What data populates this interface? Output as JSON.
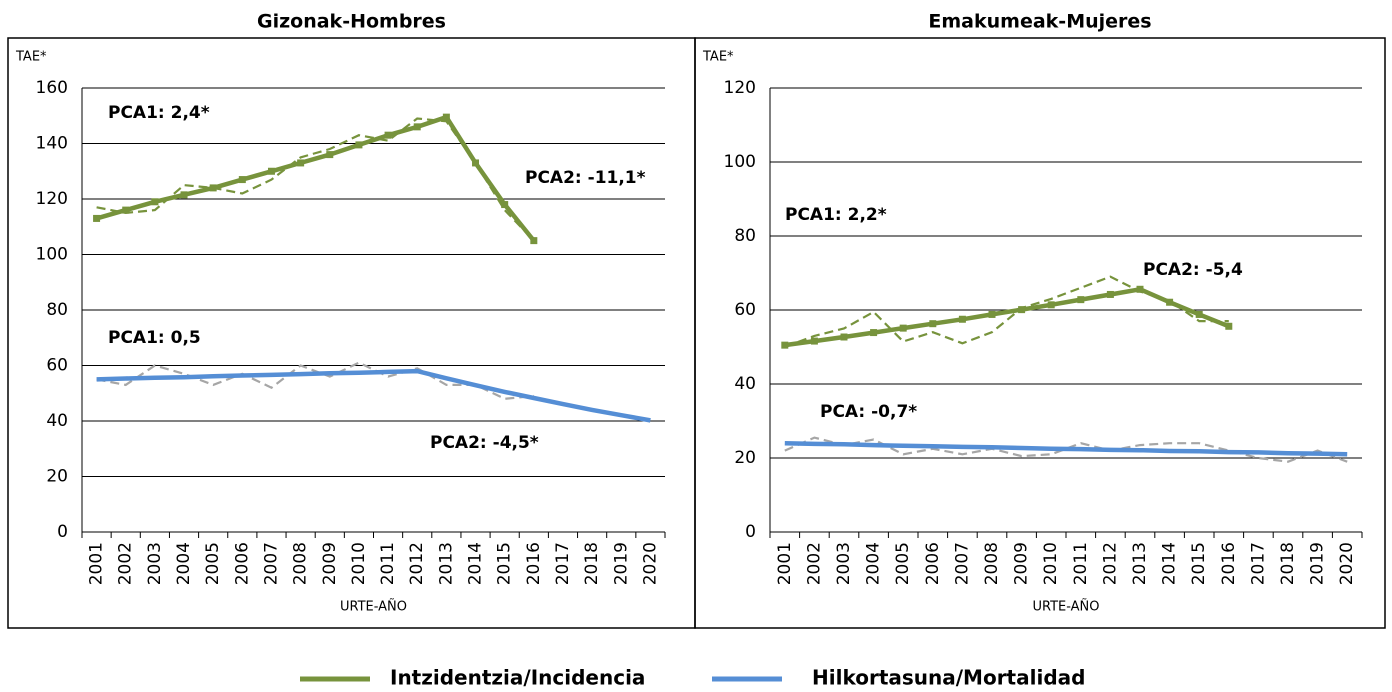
{
  "chart_data": [
    {
      "type": "line",
      "title": "Gizonak-Hombres",
      "y_label": "TAE*",
      "x_label": "URTE-AÑO",
      "categories": [
        "2001",
        "2002",
        "2003",
        "2004",
        "2005",
        "2006",
        "2007",
        "2008",
        "2009",
        "2010",
        "2011",
        "2012",
        "2013",
        "2014",
        "2015",
        "2016",
        "2017",
        "2018",
        "2019",
        "2020"
      ],
      "ylim": [
        0,
        160
      ],
      "yticks": [
        0,
        20,
        40,
        60,
        80,
        100,
        120,
        140,
        160
      ],
      "grid": true,
      "series": [
        {
          "name": "Intzidentzia/Incidencia",
          "color": "#77933c",
          "markers": true,
          "values": [
            113,
            116,
            119,
            121.5,
            124,
            127,
            130,
            133,
            136,
            139.5,
            143,
            146,
            149.5,
            133,
            118,
            105,
            null,
            null,
            null,
            null
          ],
          "observed_color": "#77933c",
          "observed": [
            117,
            115,
            116,
            125,
            124,
            122,
            127,
            135,
            138,
            143,
            141,
            149,
            148,
            133,
            116,
            105,
            null,
            null,
            null,
            null
          ]
        },
        {
          "name": "Hilkortasuna/Mortalidad",
          "color": "#558ed5",
          "markers": false,
          "values": [
            55,
            55.3,
            55.6,
            55.8,
            56.1,
            56.4,
            56.6,
            56.9,
            57.2,
            57.4,
            57.7,
            58,
            55.4,
            52.9,
            50.5,
            48.3,
            46.1,
            44,
            42.1,
            40.2
          ],
          "observed_color": "#a6a6a6",
          "observed": [
            55,
            53,
            60,
            57,
            53,
            57,
            52,
            60,
            56,
            61,
            56,
            59,
            53,
            53,
            48,
            49,
            null,
            null,
            null,
            null
          ]
        }
      ],
      "annotations": [
        {
          "text": "PCA1: 2,4*",
          "color": "#77933c"
        },
        {
          "text": "PCA2: -11,1*",
          "color": "#77933c"
        },
        {
          "text": "PCA1: 0,5",
          "color": "#558ed5"
        },
        {
          "text": "PCA2: -4,5*",
          "color": "#558ed5"
        }
      ]
    },
    {
      "type": "line",
      "title": "Emakumeak-Mujeres",
      "y_label": "TAE*",
      "x_label": "URTE-AÑO",
      "categories": [
        "2001",
        "2002",
        "2003",
        "2004",
        "2005",
        "2006",
        "2007",
        "2008",
        "2009",
        "2010",
        "2011",
        "2012",
        "2013",
        "2014",
        "2015",
        "2016",
        "2017",
        "2018",
        "2019",
        "2020"
      ],
      "ylim": [
        0,
        120
      ],
      "yticks": [
        0,
        20,
        40,
        60,
        80,
        100,
        120
      ],
      "grid": true,
      "series": [
        {
          "name": "Intzidentzia/Incidencia",
          "color": "#77933c",
          "markers": true,
          "values": [
            50.5,
            51.6,
            52.7,
            53.9,
            55.1,
            56.3,
            57.5,
            58.8,
            60.1,
            61.4,
            62.8,
            64.2,
            65.6,
            62.1,
            58.8,
            55.6,
            null,
            null,
            null,
            null
          ],
          "observed_color": "#77933c",
          "observed": [
            50,
            53,
            55,
            59.5,
            51.5,
            54,
            51,
            54,
            60.5,
            63,
            66,
            69,
            65,
            62.5,
            57,
            57,
            null,
            null,
            null,
            null
          ]
        },
        {
          "name": "Hilkortasuna/Mortalidad",
          "color": "#558ed5",
          "markers": false,
          "values": [
            24,
            23.8,
            23.7,
            23.5,
            23.3,
            23.2,
            23,
            22.9,
            22.7,
            22.5,
            22.4,
            22.2,
            22.1,
            21.9,
            21.8,
            21.6,
            21.5,
            21.3,
            21.2,
            21
          ],
          "observed_color": "#a6a6a6",
          "observed": [
            22,
            25.5,
            23.5,
            25,
            21,
            22.5,
            21,
            22.5,
            20.5,
            21,
            24,
            22,
            23.5,
            24,
            24,
            22,
            20,
            19,
            22,
            19
          ]
        }
      ],
      "annotations": [
        {
          "text": "PCA1: 2,2*",
          "color": "#77933c"
        },
        {
          "text": "PCA2: -5,4",
          "color": "#77933c"
        },
        {
          "text": "PCA: -0,7*",
          "color": "#558ed5"
        }
      ]
    }
  ]
}
